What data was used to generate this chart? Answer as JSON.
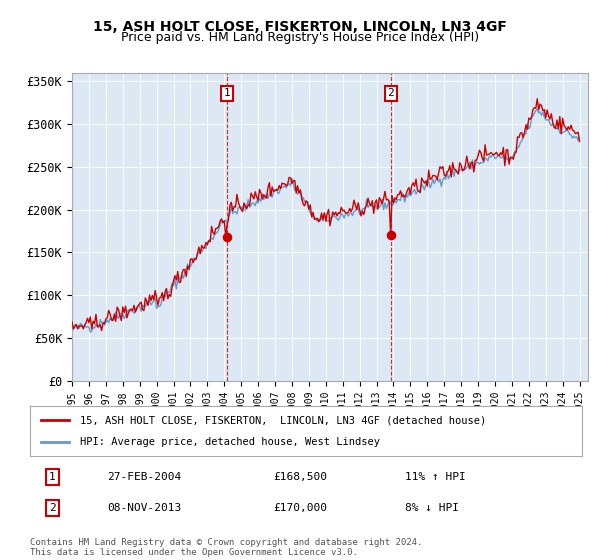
{
  "title": "15, ASH HOLT CLOSE, FISKERTON, LINCOLN, LN3 4GF",
  "subtitle": "Price paid vs. HM Land Registry's House Price Index (HPI)",
  "ylabel_ticks": [
    "£0",
    "£50K",
    "£100K",
    "£150K",
    "£200K",
    "£250K",
    "£300K",
    "£350K"
  ],
  "ytick_values": [
    0,
    50000,
    100000,
    150000,
    200000,
    250000,
    300000,
    350000
  ],
  "ylim": [
    0,
    360000
  ],
  "hpi_line_color": "#6699cc",
  "price_line_color": "#cc0000",
  "dashed_line_color": "#cc0000",
  "t1_year": 2004.15,
  "t1_price": 168500,
  "t1_date": "27-FEB-2004",
  "t1_hpi": "11% ↑ HPI",
  "t1_price_str": "£168,500",
  "t2_year": 2013.85,
  "t2_price": 170000,
  "t2_date": "08-NOV-2013",
  "t2_hpi": "8% ↓ HPI",
  "t2_price_str": "£170,000",
  "legend_label_red": "15, ASH HOLT CLOSE, FISKERTON,  LINCOLN, LN3 4GF (detached house)",
  "legend_label_blue": "HPI: Average price, detached house, West Lindsey",
  "footer": "Contains HM Land Registry data © Crown copyright and database right 2024.\nThis data is licensed under the Open Government Licence v3.0.",
  "background_color": "#ffffff",
  "plot_bg_color": "#dde8f5",
  "grid_color": "#ffffff"
}
